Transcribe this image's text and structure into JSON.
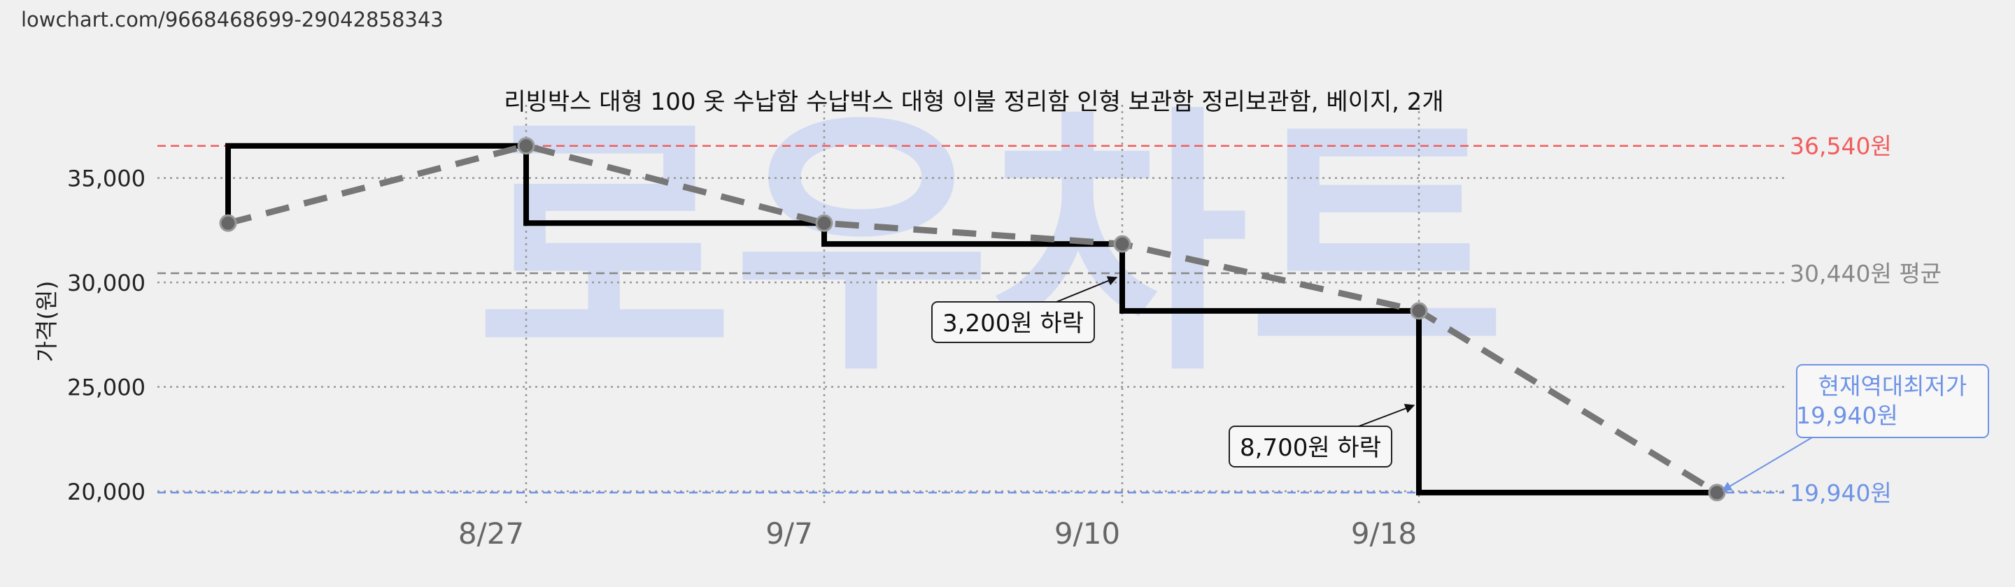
{
  "url": "lowchart.com/9668468699-29042858343",
  "watermark": "로우차트",
  "chart_data": {
    "type": "line",
    "title": "리빙박스 대형 100 옷 수납함 수납박스 대형 이불 정리함 인형 보관함 정리보관함, 베이지, 2개",
    "ylabel": "가격(원)",
    "xlabel": "",
    "ylim": [
      19500,
      37500
    ],
    "yticks": [
      20000,
      25000,
      30000,
      35000
    ],
    "ytick_labels": [
      "20,000",
      "25,000",
      "30,000",
      "35,000"
    ],
    "xticks": [
      "8/27",
      "9/7",
      "9/10",
      "9/18"
    ],
    "grid": true,
    "series": [
      {
        "style": "step",
        "color": "#000000",
        "points": [
          {
            "x": "start",
            "y": 32840
          },
          {
            "x": "start",
            "y": 36540
          },
          {
            "x": "8/27",
            "y": 36540
          },
          {
            "x": "8/27",
            "y": 32840
          },
          {
            "x": "9/7",
            "y": 32840
          },
          {
            "x": "9/7",
            "y": 31840
          },
          {
            "x": "9/10",
            "y": 31840
          },
          {
            "x": "9/10",
            "y": 28640
          },
          {
            "x": "9/18",
            "y": 28640
          },
          {
            "x": "9/18",
            "y": 19940
          },
          {
            "x": "end",
            "y": 19940
          }
        ]
      },
      {
        "style": "dashed",
        "color": "#777777",
        "points": [
          {
            "x": "start",
            "y": 32840
          },
          {
            "x": "8/27",
            "y": 36540
          },
          {
            "x": "9/7",
            "y": 32840
          },
          {
            "x": "9/10",
            "y": 31840
          },
          {
            "x": "9/18",
            "y": 28640
          },
          {
            "x": "end",
            "y": 19940
          }
        ]
      }
    ],
    "reference_lines": [
      {
        "value": 36540,
        "label": "36,540원",
        "color": "#f25c5c"
      },
      {
        "value": 30440,
        "label": "30,440원 평균",
        "color": "#888888"
      },
      {
        "value": 19940,
        "label": "19,940원",
        "color": "#6f93e6"
      }
    ],
    "annotations": [
      {
        "text": "3,200원 하락",
        "x": "9/10",
        "y": 31840
      },
      {
        "text": "8,700원 하락",
        "x": "9/18",
        "y": 24200
      }
    ],
    "current_low": {
      "line1": "현재역대최저가",
      "line2": "19,940원",
      "color": "#6f93e6"
    }
  }
}
